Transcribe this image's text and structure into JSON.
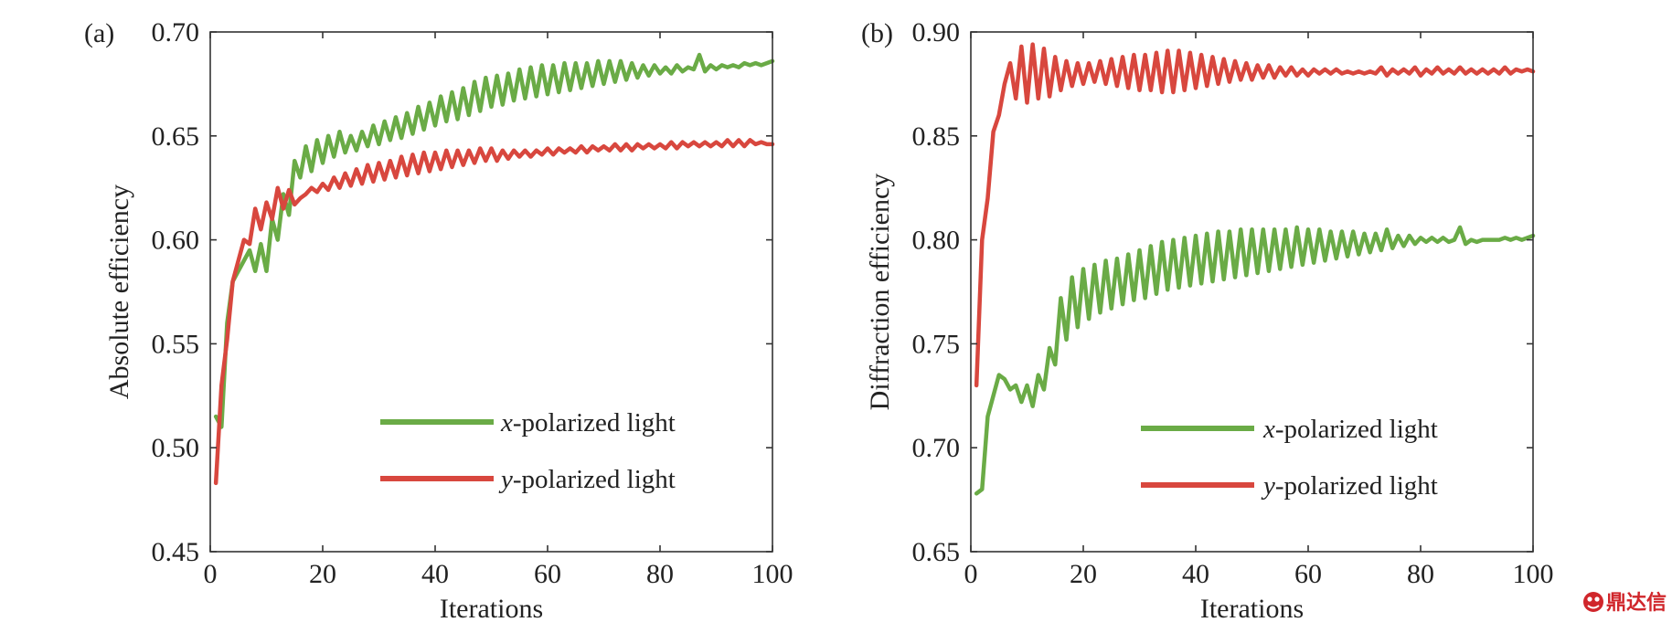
{
  "colors": {
    "x_series": "#6aab46",
    "y_series": "#d8473e",
    "axis": "#333333"
  },
  "watermark": {
    "text": "鼎达信",
    "icon": "mask-logo-icon"
  },
  "chart_data": [
    {
      "type": "line",
      "panel_label": "(a)",
      "xlabel": "Iterations",
      "ylabel": "Absolute efficiency",
      "xlim": [
        0,
        100
      ],
      "ylim": [
        0.45,
        0.7
      ],
      "xticks": [
        0,
        20,
        40,
        60,
        80,
        100
      ],
      "xtick_labels": [
        "0",
        "20",
        "40",
        "60",
        "80",
        "100"
      ],
      "yticks": [
        0.45,
        0.5,
        0.55,
        0.6,
        0.65,
        0.7
      ],
      "ytick_labels": [
        "0.45",
        "0.50",
        "0.55",
        "0.60",
        "0.65",
        "0.70"
      ],
      "legend_position": "lower-right",
      "series": [
        {
          "name": "x-polarized light",
          "name_italic": "x",
          "name_rest": "-polarized light",
          "color": "#6aab46",
          "x": [
            1,
            2,
            3,
            4,
            5,
            6,
            7,
            8,
            9,
            10,
            11,
            12,
            13,
            14,
            15,
            16,
            17,
            18,
            19,
            20,
            21,
            22,
            23,
            24,
            25,
            26,
            27,
            28,
            29,
            30,
            31,
            32,
            33,
            34,
            35,
            36,
            37,
            38,
            39,
            40,
            41,
            42,
            43,
            44,
            45,
            46,
            47,
            48,
            49,
            50,
            51,
            52,
            53,
            54,
            55,
            56,
            57,
            58,
            59,
            60,
            61,
            62,
            63,
            64,
            65,
            66,
            67,
            68,
            69,
            70,
            71,
            72,
            73,
            74,
            75,
            76,
            77,
            78,
            79,
            80,
            81,
            82,
            83,
            84,
            85,
            86,
            87,
            88,
            89,
            90,
            91,
            92,
            93,
            94,
            95,
            96,
            97,
            98,
            99,
            100
          ],
          "values": [
            0.515,
            0.51,
            0.56,
            0.58,
            0.585,
            0.59,
            0.595,
            0.585,
            0.598,
            0.585,
            0.61,
            0.6,
            0.622,
            0.612,
            0.638,
            0.63,
            0.645,
            0.633,
            0.648,
            0.637,
            0.65,
            0.64,
            0.652,
            0.642,
            0.65,
            0.643,
            0.652,
            0.645,
            0.655,
            0.646,
            0.657,
            0.648,
            0.659,
            0.649,
            0.661,
            0.651,
            0.664,
            0.653,
            0.666,
            0.655,
            0.669,
            0.657,
            0.671,
            0.658,
            0.673,
            0.66,
            0.676,
            0.662,
            0.678,
            0.664,
            0.679,
            0.665,
            0.68,
            0.667,
            0.682,
            0.668,
            0.683,
            0.669,
            0.684,
            0.67,
            0.684,
            0.671,
            0.685,
            0.672,
            0.685,
            0.673,
            0.685,
            0.674,
            0.686,
            0.675,
            0.686,
            0.676,
            0.686,
            0.677,
            0.685,
            0.678,
            0.684,
            0.679,
            0.684,
            0.68,
            0.683,
            0.68,
            0.684,
            0.681,
            0.683,
            0.682,
            0.689,
            0.681,
            0.684,
            0.682,
            0.684,
            0.683,
            0.684,
            0.683,
            0.685,
            0.684,
            0.685,
            0.684,
            0.685,
            0.686
          ]
        },
        {
          "name": "y-polarized light",
          "name_italic": "y",
          "name_rest": "-polarized light",
          "color": "#d8473e",
          "x": [
            1,
            2,
            3,
            4,
            5,
            6,
            7,
            8,
            9,
            10,
            11,
            12,
            13,
            14,
            15,
            16,
            17,
            18,
            19,
            20,
            21,
            22,
            23,
            24,
            25,
            26,
            27,
            28,
            29,
            30,
            31,
            32,
            33,
            34,
            35,
            36,
            37,
            38,
            39,
            40,
            41,
            42,
            43,
            44,
            45,
            46,
            47,
            48,
            49,
            50,
            51,
            52,
            53,
            54,
            55,
            56,
            57,
            58,
            59,
            60,
            61,
            62,
            63,
            64,
            65,
            66,
            67,
            68,
            69,
            70,
            71,
            72,
            73,
            74,
            75,
            76,
            77,
            78,
            79,
            80,
            81,
            82,
            83,
            84,
            85,
            86,
            87,
            88,
            89,
            90,
            91,
            92,
            93,
            94,
            95,
            96,
            97,
            98,
            99,
            100
          ],
          "values": [
            0.483,
            0.53,
            0.552,
            0.58,
            0.59,
            0.6,
            0.598,
            0.615,
            0.605,
            0.618,
            0.61,
            0.625,
            0.615,
            0.624,
            0.617,
            0.62,
            0.622,
            0.625,
            0.623,
            0.627,
            0.624,
            0.63,
            0.625,
            0.632,
            0.626,
            0.634,
            0.627,
            0.636,
            0.628,
            0.637,
            0.629,
            0.638,
            0.63,
            0.64,
            0.631,
            0.641,
            0.632,
            0.642,
            0.633,
            0.642,
            0.634,
            0.643,
            0.635,
            0.643,
            0.636,
            0.643,
            0.637,
            0.644,
            0.638,
            0.644,
            0.638,
            0.643,
            0.639,
            0.643,
            0.64,
            0.643,
            0.64,
            0.643,
            0.641,
            0.644,
            0.641,
            0.644,
            0.642,
            0.644,
            0.642,
            0.645,
            0.642,
            0.645,
            0.643,
            0.645,
            0.643,
            0.646,
            0.643,
            0.646,
            0.643,
            0.646,
            0.644,
            0.646,
            0.644,
            0.646,
            0.644,
            0.647,
            0.644,
            0.647,
            0.645,
            0.647,
            0.645,
            0.647,
            0.645,
            0.647,
            0.645,
            0.648,
            0.645,
            0.648,
            0.645,
            0.648,
            0.646,
            0.647,
            0.646,
            0.646
          ]
        }
      ]
    },
    {
      "type": "line",
      "panel_label": "(b)",
      "xlabel": "Iterations",
      "ylabel": "Diffraction efficiency",
      "xlim": [
        0,
        100
      ],
      "ylim": [
        0.65,
        0.9
      ],
      "xticks": [
        0,
        20,
        40,
        60,
        80,
        100
      ],
      "xtick_labels": [
        "0",
        "20",
        "40",
        "60",
        "80",
        "100"
      ],
      "yticks": [
        0.65,
        0.7,
        0.75,
        0.8,
        0.85,
        0.9
      ],
      "ytick_labels": [
        "0.65",
        "0.70",
        "0.75",
        "0.80",
        "0.85",
        "0.90"
      ],
      "legend_position": "lower-right",
      "series": [
        {
          "name": "x-polarized light",
          "name_italic": "x",
          "name_rest": "-polarized light",
          "color": "#6aab46",
          "x": [
            1,
            2,
            3,
            4,
            5,
            6,
            7,
            8,
            9,
            10,
            11,
            12,
            13,
            14,
            15,
            16,
            17,
            18,
            19,
            20,
            21,
            22,
            23,
            24,
            25,
            26,
            27,
            28,
            29,
            30,
            31,
            32,
            33,
            34,
            35,
            36,
            37,
            38,
            39,
            40,
            41,
            42,
            43,
            44,
            45,
            46,
            47,
            48,
            49,
            50,
            51,
            52,
            53,
            54,
            55,
            56,
            57,
            58,
            59,
            60,
            61,
            62,
            63,
            64,
            65,
            66,
            67,
            68,
            69,
            70,
            71,
            72,
            73,
            74,
            75,
            76,
            77,
            78,
            79,
            80,
            81,
            82,
            83,
            84,
            85,
            86,
            87,
            88,
            89,
            90,
            91,
            92,
            93,
            94,
            95,
            96,
            97,
            98,
            99,
            100
          ],
          "values": [
            0.678,
            0.68,
            0.715,
            0.725,
            0.735,
            0.733,
            0.728,
            0.73,
            0.722,
            0.73,
            0.72,
            0.735,
            0.728,
            0.748,
            0.74,
            0.772,
            0.752,
            0.782,
            0.758,
            0.786,
            0.762,
            0.788,
            0.765,
            0.79,
            0.767,
            0.791,
            0.769,
            0.793,
            0.771,
            0.795,
            0.772,
            0.797,
            0.774,
            0.799,
            0.776,
            0.8,
            0.777,
            0.801,
            0.778,
            0.802,
            0.779,
            0.803,
            0.78,
            0.804,
            0.781,
            0.804,
            0.782,
            0.805,
            0.783,
            0.805,
            0.784,
            0.805,
            0.785,
            0.805,
            0.786,
            0.805,
            0.787,
            0.806,
            0.788,
            0.805,
            0.789,
            0.805,
            0.79,
            0.804,
            0.791,
            0.804,
            0.792,
            0.804,
            0.793,
            0.803,
            0.794,
            0.803,
            0.795,
            0.805,
            0.796,
            0.802,
            0.797,
            0.802,
            0.798,
            0.801,
            0.799,
            0.801,
            0.799,
            0.801,
            0.799,
            0.8,
            0.806,
            0.798,
            0.8,
            0.799,
            0.8,
            0.8,
            0.8,
            0.8,
            0.801,
            0.8,
            0.801,
            0.8,
            0.801,
            0.802
          ]
        },
        {
          "name": "y-polarized light",
          "name_italic": "y",
          "name_rest": "-polarized light",
          "color": "#d8473e",
          "x": [
            1,
            2,
            3,
            4,
            5,
            6,
            7,
            8,
            9,
            10,
            11,
            12,
            13,
            14,
            15,
            16,
            17,
            18,
            19,
            20,
            21,
            22,
            23,
            24,
            25,
            26,
            27,
            28,
            29,
            30,
            31,
            32,
            33,
            34,
            35,
            36,
            37,
            38,
            39,
            40,
            41,
            42,
            43,
            44,
            45,
            46,
            47,
            48,
            49,
            50,
            51,
            52,
            53,
            54,
            55,
            56,
            57,
            58,
            59,
            60,
            61,
            62,
            63,
            64,
            65,
            66,
            67,
            68,
            69,
            70,
            71,
            72,
            73,
            74,
            75,
            76,
            77,
            78,
            79,
            80,
            81,
            82,
            83,
            84,
            85,
            86,
            87,
            88,
            89,
            90,
            91,
            92,
            93,
            94,
            95,
            96,
            97,
            98,
            99,
            100
          ],
          "values": [
            0.73,
            0.8,
            0.82,
            0.852,
            0.86,
            0.875,
            0.885,
            0.868,
            0.893,
            0.866,
            0.894,
            0.868,
            0.892,
            0.869,
            0.888,
            0.872,
            0.886,
            0.874,
            0.885,
            0.875,
            0.885,
            0.876,
            0.886,
            0.875,
            0.887,
            0.874,
            0.888,
            0.873,
            0.889,
            0.872,
            0.889,
            0.872,
            0.89,
            0.871,
            0.891,
            0.871,
            0.891,
            0.872,
            0.89,
            0.873,
            0.889,
            0.874,
            0.888,
            0.875,
            0.887,
            0.876,
            0.886,
            0.877,
            0.885,
            0.877,
            0.884,
            0.878,
            0.884,
            0.878,
            0.883,
            0.879,
            0.883,
            0.879,
            0.882,
            0.879,
            0.882,
            0.88,
            0.882,
            0.88,
            0.882,
            0.88,
            0.881,
            0.88,
            0.881,
            0.88,
            0.881,
            0.88,
            0.883,
            0.879,
            0.882,
            0.88,
            0.882,
            0.88,
            0.883,
            0.879,
            0.882,
            0.88,
            0.883,
            0.88,
            0.882,
            0.88,
            0.883,
            0.88,
            0.882,
            0.88,
            0.882,
            0.88,
            0.882,
            0.88,
            0.883,
            0.88,
            0.882,
            0.881,
            0.882,
            0.881
          ]
        }
      ]
    }
  ]
}
